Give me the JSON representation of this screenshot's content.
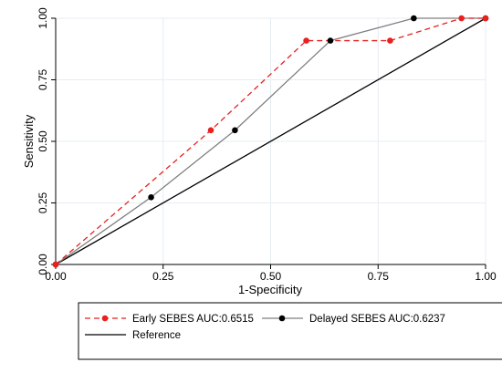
{
  "chart_data": {
    "type": "line",
    "title": "",
    "xlabel": "1-Specificity",
    "ylabel": "Sensitivity",
    "xlim": [
      0,
      1
    ],
    "ylim": [
      0,
      1
    ],
    "x_ticks": [
      "0.00",
      "0.25",
      "0.50",
      "0.75",
      "1.00"
    ],
    "y_ticks": [
      "0.00",
      "0.25",
      "0.50",
      "0.75",
      "1.00"
    ],
    "grid": true,
    "legend_position": "bottom",
    "series": [
      {
        "name": "Early SEBES AUC:0.6515",
        "color": "#e8211f",
        "line_style": "dashed",
        "marker": "circle",
        "points": [
          [
            0.0,
            0.0
          ],
          [
            0.361,
            0.545
          ],
          [
            0.583,
            0.909
          ],
          [
            0.778,
            0.909
          ],
          [
            0.944,
            1.0
          ],
          [
            1.0,
            1.0
          ]
        ]
      },
      {
        "name": "Delayed SEBES AUC:0.6237",
        "color": "#7f7f7f",
        "marker_color": "#000000",
        "line_style": "solid",
        "marker": "circle",
        "points": [
          [
            0.0,
            0.0
          ],
          [
            0.222,
            0.273
          ],
          [
            0.417,
            0.545
          ],
          [
            0.639,
            0.909
          ],
          [
            0.833,
            1.0
          ],
          [
            1.0,
            1.0
          ]
        ]
      },
      {
        "name": "Reference",
        "color": "#000000",
        "line_style": "solid",
        "marker": "none",
        "points": [
          [
            0.0,
            0.0
          ],
          [
            1.0,
            1.0
          ]
        ]
      }
    ]
  }
}
